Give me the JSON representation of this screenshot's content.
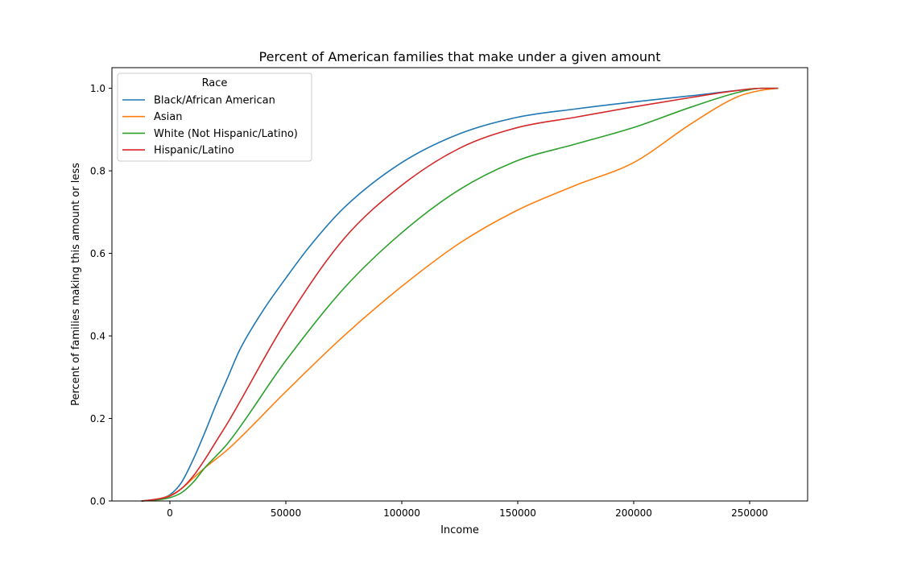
{
  "chart_data": {
    "type": "line",
    "title": "Percent of American families that make under a given amount",
    "xlabel": "Income",
    "ylabel": "Percent of families making this amount or less",
    "xlim": [
      -25000,
      275000
    ],
    "ylim": [
      0,
      1.05
    ],
    "xticks": [
      0,
      50000,
      100000,
      150000,
      200000,
      250000
    ],
    "xtick_labels": [
      "0",
      "50000",
      "100000",
      "150000",
      "200000",
      "250000"
    ],
    "yticks": [
      0.0,
      0.2,
      0.4,
      0.6,
      0.8,
      1.0
    ],
    "ytick_labels": [
      "0.0",
      "0.2",
      "0.4",
      "0.6",
      "0.8",
      "1.0"
    ],
    "grid": false,
    "legend": {
      "title": "Race",
      "placement": "top-left"
    },
    "series": [
      {
        "name": "Black/African American",
        "color": "#1f77b4",
        "x": [
          -12000,
          -5000,
          0,
          5000,
          10000,
          15000,
          20000,
          25000,
          30000,
          40000,
          50000,
          60000,
          75000,
          100000,
          125000,
          150000,
          175000,
          200000,
          225000,
          245000,
          255000,
          262000
        ],
        "y": [
          0.0,
          0.005,
          0.015,
          0.045,
          0.1,
          0.165,
          0.235,
          0.3,
          0.365,
          0.46,
          0.54,
          0.615,
          0.71,
          0.82,
          0.89,
          0.93,
          0.95,
          0.967,
          0.982,
          0.995,
          1.0,
          1.0
        ]
      },
      {
        "name": "Asian",
        "color": "#ff7f0e",
        "x": [
          -12000,
          -5000,
          0,
          5000,
          10000,
          15000,
          25000,
          50000,
          75000,
          100000,
          125000,
          150000,
          175000,
          200000,
          225000,
          245000,
          255000,
          262000
        ],
        "y": [
          0.0,
          0.005,
          0.013,
          0.03,
          0.055,
          0.08,
          0.125,
          0.265,
          0.4,
          0.52,
          0.625,
          0.705,
          0.765,
          0.82,
          0.915,
          0.98,
          0.995,
          1.0
        ]
      },
      {
        "name": "White (Not Hispanic/Latino)",
        "color": "#2ca02c",
        "x": [
          -12000,
          -5000,
          0,
          5000,
          10000,
          15000,
          25000,
          50000,
          75000,
          100000,
          125000,
          150000,
          175000,
          200000,
          225000,
          245000,
          255000,
          262000
        ],
        "y": [
          0.0,
          0.003,
          0.008,
          0.02,
          0.045,
          0.08,
          0.14,
          0.34,
          0.515,
          0.65,
          0.755,
          0.825,
          0.865,
          0.905,
          0.955,
          0.99,
          1.0,
          1.0
        ]
      },
      {
        "name": "Hispanic/Latino",
        "color": "#d62728",
        "x": [
          -12000,
          -5000,
          0,
          5000,
          10000,
          15000,
          20000,
          25000,
          50000,
          75000,
          100000,
          125000,
          150000,
          175000,
          200000,
          225000,
          245000,
          255000,
          262000
        ],
        "y": [
          0.0,
          0.005,
          0.012,
          0.03,
          0.06,
          0.1,
          0.145,
          0.19,
          0.435,
          0.635,
          0.765,
          0.855,
          0.905,
          0.93,
          0.955,
          0.978,
          0.995,
          1.0,
          1.0
        ]
      }
    ]
  }
}
